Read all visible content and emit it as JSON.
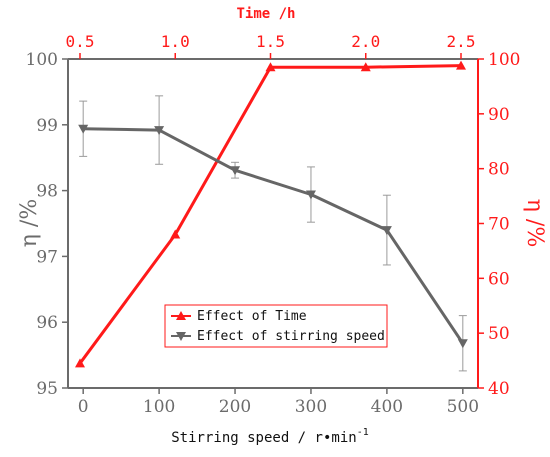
{
  "chart_data": {
    "type": "line",
    "axes": {
      "x_bottom": {
        "label": "Stirring speed / r•min",
        "label_sup": "-1",
        "range": [
          -20,
          520
        ],
        "ticks": [
          0,
          100,
          200,
          300,
          400,
          500
        ]
      },
      "x_top": {
        "label": "Time /h",
        "range": [
          0.5,
          2.5
        ],
        "ticks": [
          "0.5",
          "1.0",
          "1.5",
          "2.0",
          "2.5"
        ]
      },
      "y_left": {
        "label": "η /%",
        "range": [
          95,
          100
        ],
        "ticks": [
          95,
          96,
          97,
          98,
          99,
          100
        ]
      },
      "y_right": {
        "label": "η /%",
        "range": [
          40,
          100
        ],
        "ticks": [
          40,
          50,
          60,
          70,
          80,
          90,
          100
        ]
      }
    },
    "series": [
      {
        "name": "Effect of Time",
        "color": "#ff1a1a",
        "marker": "triangle-up",
        "x_axis": "top",
        "y_axis": "right",
        "x": [
          0.5,
          1.0,
          1.5,
          2.0,
          2.5
        ],
        "y": [
          44.5,
          68.0,
          98.5,
          98.5,
          98.8
        ]
      },
      {
        "name": "Effect of stirring speed",
        "color": "#666666",
        "marker": "triangle-down",
        "x_axis": "bottom",
        "y_axis": "left",
        "x": [
          0,
          100,
          200,
          300,
          400,
          500
        ],
        "y": [
          98.94,
          98.92,
          98.31,
          97.94,
          97.4,
          95.68
        ],
        "error": [
          0.42,
          0.52,
          0.12,
          0.42,
          0.53,
          0.42
        ]
      }
    ],
    "legend_position": "bottom-center"
  }
}
